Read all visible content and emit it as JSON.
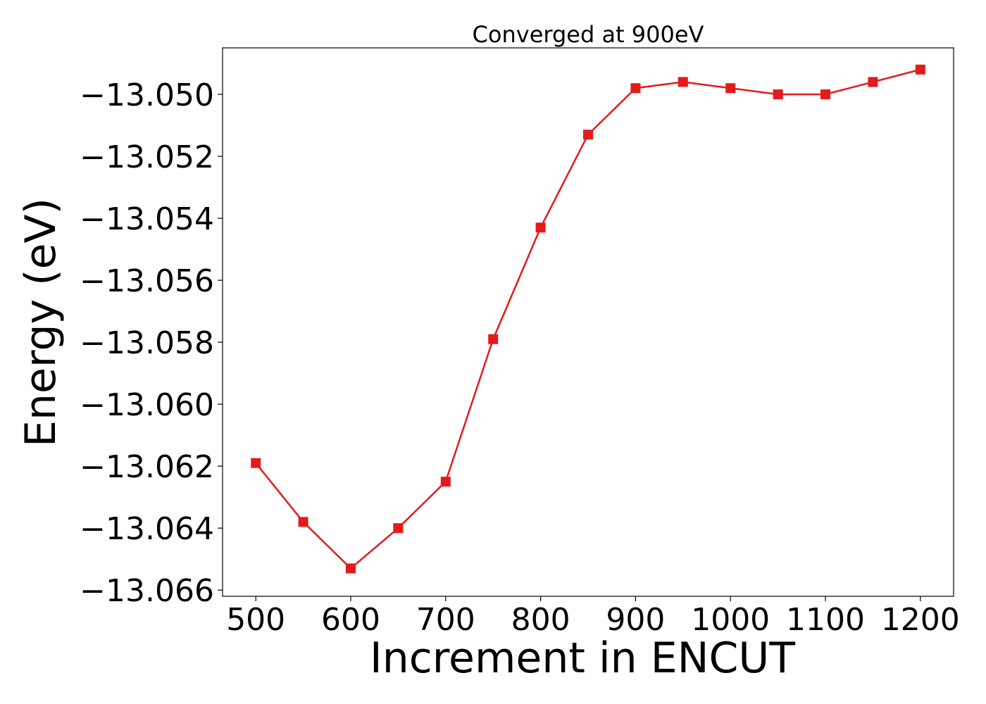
{
  "chart_data": {
    "type": "line",
    "title": "Converged at 900eV",
    "xlabel": "Increment in ENCUT",
    "ylabel": "Energy (eV)",
    "xlim": [
      465,
      1235
    ],
    "ylim": [
      -13.0662,
      -13.0485
    ],
    "grid": false,
    "legend": "none",
    "x_ticks": [
      500,
      600,
      700,
      800,
      900,
      1000,
      1100,
      1200
    ],
    "x_tick_labels": [
      "500",
      "600",
      "700",
      "800",
      "900",
      "1000",
      "1100",
      "1200"
    ],
    "y_ticks": [
      -13.05,
      -13.052,
      -13.054,
      -13.056,
      -13.058,
      -13.06,
      -13.062,
      -13.064,
      -13.066
    ],
    "y_tick_labels": [
      "−13.050",
      "−13.052",
      "−13.054",
      "−13.056",
      "−13.058",
      "−13.060",
      "−13.062",
      "−13.064",
      "−13.066"
    ],
    "series": [
      {
        "color": "#e41a1c",
        "marker": "square",
        "x": [
          500,
          550,
          600,
          650,
          700,
          750,
          800,
          850,
          900,
          950,
          1000,
          1050,
          1100,
          1150,
          1200
        ],
        "y": [
          -13.0619,
          -13.0638,
          -13.0653,
          -13.064,
          -13.0625,
          -13.0579,
          -13.0543,
          -13.0513,
          -13.0498,
          -13.0496,
          -13.0498,
          -13.05,
          -13.05,
          -13.0496,
          -13.0492
        ]
      }
    ]
  }
}
